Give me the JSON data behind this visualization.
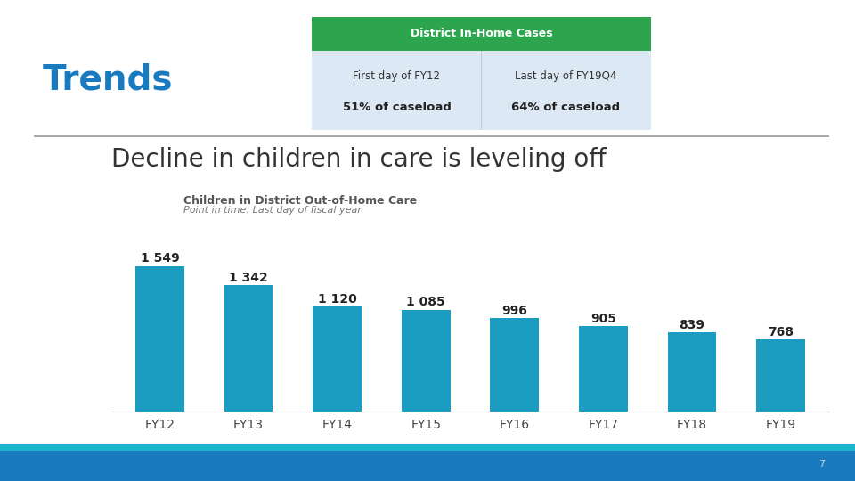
{
  "title_text": "Decline in children in care is leveling off",
  "subtitle1": "Children in District Out-of-Home Care",
  "subtitle2": "Point in time: Last day of fiscal year",
  "categories": [
    "FY12",
    "FY13",
    "FY14",
    "FY15",
    "FY16",
    "FY17",
    "FY18",
    "FY19"
  ],
  "values": [
    1549,
    1342,
    1120,
    1085,
    996,
    905,
    839,
    768
  ],
  "bar_color": "#1a9dc0",
  "header_green": "#2da44e",
  "header_blue_light": "#dce9f5",
  "header_text_white": "#ffffff",
  "header_text_dark": "#222222",
  "trends_color": "#1a7abf",
  "page_bg": "#ffffff",
  "bottom_bar_teal": "#1ab5cc",
  "bottom_bar_blue": "#1a7abf",
  "separator_color": "#aaaaaa",
  "bar_label_fontsize": 10,
  "axis_tick_fontsize": 10,
  "title_fontsize": 20,
  "subtitle1_fontsize": 9,
  "subtitle2_fontsize": 8,
  "col1_text_line1": "First day of FY12",
  "col1_text_line2": "51% of caseload",
  "col2_text_line1": "Last day of FY19Q4",
  "col2_text_line2": "64% of caseload",
  "trends_label": "Trends",
  "district_label": "District In-Home Cases",
  "page_number": "7"
}
